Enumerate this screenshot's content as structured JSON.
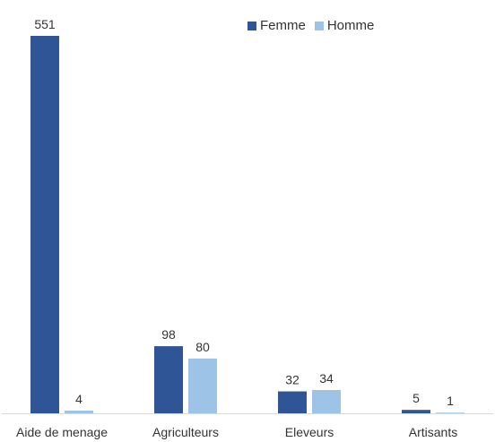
{
  "chart_data": {
    "type": "bar",
    "categories": [
      "Aide de menage",
      "Agriculteurs",
      "Eleveurs",
      "Artisants"
    ],
    "series": [
      {
        "name": "Femme",
        "values": [
          551,
          98,
          32,
          5
        ],
        "color": "#2F5597"
      },
      {
        "name": "Homme",
        "values": [
          4,
          80,
          34,
          1
        ],
        "color": "#9DC3E6"
      }
    ],
    "title": "",
    "xlabel": "",
    "ylabel": "",
    "ylim": [
      0,
      551
    ],
    "grid": false,
    "legend_position": "top-right",
    "axis_color": "#D9D9D9"
  }
}
